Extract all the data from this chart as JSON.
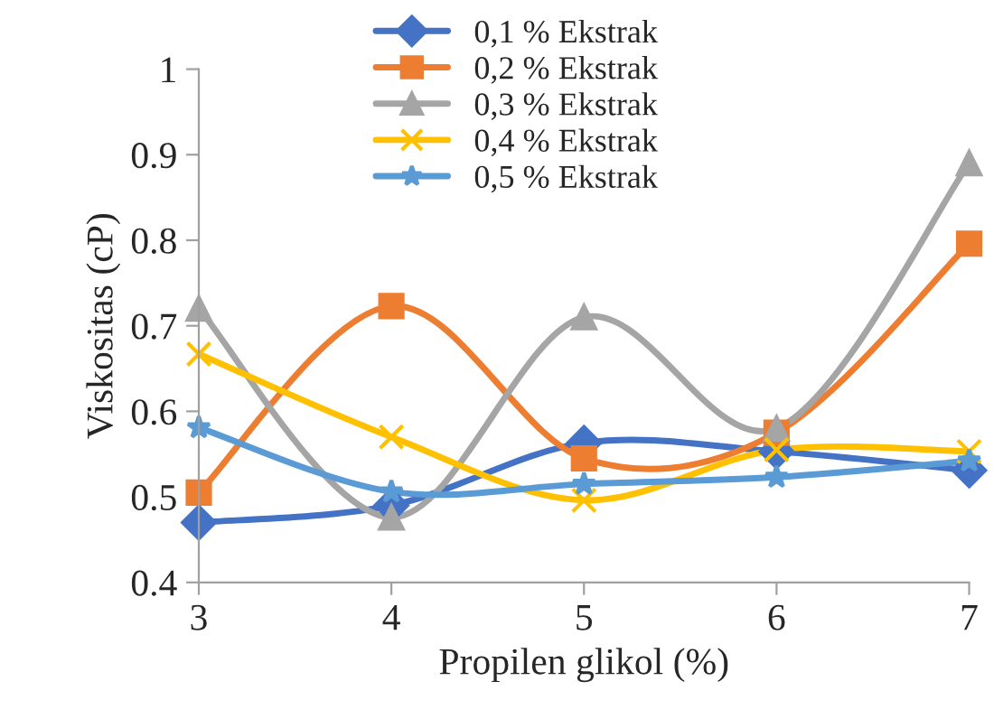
{
  "chart_data": {
    "type": "line",
    "xlabel": "Propilen glikol (%)",
    "ylabel": "Viskositas (cP)",
    "x": [
      3,
      4,
      5,
      6,
      7
    ],
    "series": [
      {
        "name": "0,1 % Ekstrak",
        "color": "#4472c4",
        "marker": "diamond",
        "values": [
          0.47,
          0.49,
          0.563,
          0.553,
          0.531
        ]
      },
      {
        "name": "0,2 % Ekstrak",
        "color": "#ed7d31",
        "marker": "square",
        "values": [
          0.505,
          0.723,
          0.545,
          0.575,
          0.796
        ]
      },
      {
        "name": "0,3 % Ekstrak",
        "color": "#a5a5a5",
        "marker": "triangle",
        "values": [
          0.72,
          0.476,
          0.71,
          0.58,
          0.89
        ]
      },
      {
        "name": "0,4 % Ekstrak",
        "color": "#ffc000",
        "marker": "cross",
        "values": [
          0.667,
          0.57,
          0.496,
          0.555,
          0.553
        ]
      },
      {
        "name": "0,5 % Ekstrak",
        "color": "#5b9bd5",
        "marker": "star",
        "values": [
          0.581,
          0.506,
          0.515,
          0.523,
          0.542
        ]
      }
    ],
    "xlim": [
      3,
      7
    ],
    "xticks": [
      3,
      4,
      5,
      6,
      7
    ],
    "ylim": [
      0.4,
      1
    ],
    "yticks": [
      0.4,
      0.5,
      0.6,
      0.7,
      0.8,
      0.9,
      1
    ],
    "grid": false,
    "legend": "top",
    "line_style": "solid"
  }
}
